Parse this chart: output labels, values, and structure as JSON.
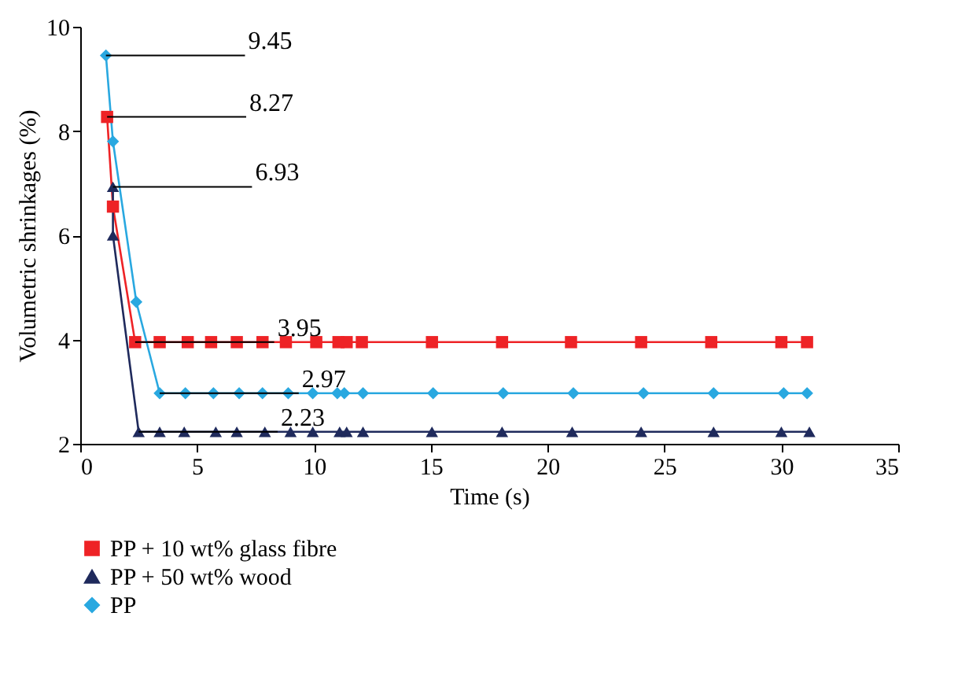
{
  "chart_data": {
    "type": "line",
    "xlabel": "Time (s)",
    "ylabel": "Volumetric shrinkages (%)",
    "xlim": [
      0,
      35
    ],
    "xticks": [
      0,
      5,
      10,
      15,
      20,
      25,
      30,
      35
    ],
    "ylim": [
      2,
      10
    ],
    "yticks": [
      2,
      4,
      6,
      8,
      10
    ],
    "grid": false,
    "legend": "bottom",
    "series": [
      {
        "name": "PP + 10 wt% glass fibre",
        "color": "#ee2326",
        "marker": "square",
        "x": [
          1.15,
          1.4,
          2.35,
          3.4,
          4.6,
          5.6,
          6.7,
          7.8,
          8.8,
          10.1,
          11.05,
          11.4,
          12.05,
          15.05,
          18.05,
          21.0,
          24.0,
          27.0,
          30.0,
          31.1
        ],
        "values": [
          8.27,
          6.55,
          3.95,
          3.95,
          3.95,
          3.95,
          3.95,
          3.95,
          3.95,
          3.95,
          3.95,
          3.95,
          3.95,
          3.95,
          3.95,
          3.95,
          3.95,
          3.95,
          3.95,
          3.95
        ]
      },
      {
        "name": "PP + 50 wt% wood",
        "color": "#1f2a5c",
        "marker": "triangle",
        "x": [
          1.4,
          1.4,
          2.5,
          3.4,
          4.45,
          5.8,
          6.7,
          7.9,
          9.0,
          9.95,
          11.1,
          11.4,
          12.1,
          15.05,
          18.05,
          21.05,
          24.0,
          27.1,
          30.0,
          31.2
        ],
        "values": [
          6.93,
          6.0,
          2.23,
          2.23,
          2.23,
          2.23,
          2.23,
          2.23,
          2.23,
          2.23,
          2.23,
          2.23,
          2.23,
          2.23,
          2.23,
          2.23,
          2.23,
          2.23,
          2.23,
          2.23
        ]
      },
      {
        "name": "PP",
        "color": "#29a8e0",
        "marker": "diamond",
        "x": [
          1.1,
          1.4,
          2.4,
          3.4,
          4.5,
          5.7,
          6.8,
          7.8,
          8.9,
          9.95,
          11.0,
          11.3,
          12.1,
          15.1,
          18.1,
          21.1,
          24.1,
          27.1,
          30.1,
          31.1
        ],
        "values": [
          9.45,
          7.8,
          4.72,
          2.97,
          2.97,
          2.97,
          2.97,
          2.97,
          2.97,
          2.97,
          2.97,
          2.97,
          2.97,
          2.97,
          2.97,
          2.97,
          2.97,
          2.97,
          2.97,
          2.97
        ]
      }
    ],
    "annotations": [
      {
        "text": "9.45",
        "x": 1.1,
        "y": 9.45
      },
      {
        "text": "8.27",
        "x": 1.15,
        "y": 8.27
      },
      {
        "text": "6.93",
        "x": 1.4,
        "y": 6.93
      },
      {
        "text": "3.95",
        "x": 2.35,
        "y": 3.95
      },
      {
        "text": "2.97",
        "x": 3.4,
        "y": 2.97
      },
      {
        "text": "2.23",
        "x": 2.5,
        "y": 2.23
      }
    ]
  }
}
